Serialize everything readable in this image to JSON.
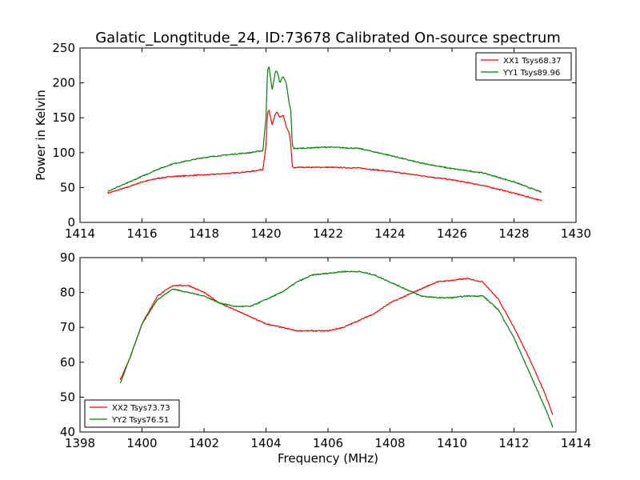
{
  "figure": {
    "title": "Galatic_Longtitude_24, ID:73678 Calibrated On-source spectrum"
  },
  "chart_data": [
    {
      "type": "line",
      "title": "Galatic_Longtitude_24, ID:73678 Calibrated On-source spectrum",
      "xlabel": "",
      "ylabel": "Power in Kelvin",
      "xlim": [
        1414,
        1430
      ],
      "ylim": [
        0,
        250
      ],
      "x_ticks": [
        1414,
        1416,
        1418,
        1420,
        1422,
        1424,
        1426,
        1428,
        1430
      ],
      "y_ticks": [
        0,
        50,
        100,
        150,
        200,
        250
      ],
      "grid": false,
      "legend_position": "top-right",
      "series": [
        {
          "name": "XX1 Tsys68.37",
          "color": "#ff0000",
          "x": [
            1414.9,
            1415.5,
            1416.0,
            1416.5,
            1417.0,
            1418.0,
            1419.0,
            1419.5,
            1419.9,
            1420.0,
            1420.05,
            1420.1,
            1420.2,
            1420.3,
            1420.35,
            1420.45,
            1420.55,
            1420.65,
            1420.75,
            1420.8,
            1420.85,
            1420.9,
            1421.0,
            1422.0,
            1423.0,
            1424.0,
            1425.0,
            1426.0,
            1427.0,
            1428.0,
            1428.9
          ],
          "y": [
            42,
            50,
            58,
            63,
            66,
            68,
            71,
            73,
            76,
            110,
            158,
            160,
            140,
            155,
            158,
            150,
            154,
            138,
            128,
            112,
            80,
            78,
            79,
            79,
            78,
            73,
            67,
            61,
            53,
            42,
            31
          ]
        },
        {
          "name": "YY1 Tsys89.96",
          "color": "#008000",
          "x": [
            1414.9,
            1415.5,
            1416.0,
            1416.5,
            1417.0,
            1418.0,
            1419.0,
            1419.5,
            1419.9,
            1420.0,
            1420.05,
            1420.1,
            1420.2,
            1420.3,
            1420.35,
            1420.45,
            1420.55,
            1420.65,
            1420.75,
            1420.8,
            1420.85,
            1420.9,
            1421.0,
            1422.0,
            1423.0,
            1424.0,
            1425.0,
            1426.0,
            1427.0,
            1428.0,
            1428.9
          ],
          "y": [
            45,
            56,
            66,
            76,
            84,
            93,
            98,
            100,
            103,
            150,
            220,
            222,
            190,
            215,
            218,
            200,
            210,
            200,
            170,
            160,
            110,
            106,
            106,
            108,
            106,
            96,
            85,
            77,
            71,
            58,
            43
          ]
        }
      ]
    },
    {
      "type": "line",
      "title": "",
      "xlabel": "Frequency (MHz)",
      "ylabel": "",
      "xlim": [
        1398,
        1414
      ],
      "ylim": [
        40,
        90
      ],
      "x_ticks": [
        1398,
        1400,
        1402,
        1404,
        1406,
        1408,
        1410,
        1412,
        1414
      ],
      "y_ticks": [
        40,
        50,
        60,
        70,
        80,
        90
      ],
      "grid": false,
      "legend_position": "bottom-left",
      "series": [
        {
          "name": "XX2 Tsys73.73",
          "color": "#ff0000",
          "x": [
            1399.3,
            1399.6,
            1400.0,
            1400.5,
            1401.0,
            1401.5,
            1402.0,
            1402.5,
            1403.0,
            1403.5,
            1404.0,
            1404.5,
            1405.0,
            1405.5,
            1406.0,
            1406.5,
            1407.0,
            1407.5,
            1408.0,
            1408.5,
            1409.0,
            1409.5,
            1410.0,
            1410.5,
            1411.0,
            1411.5,
            1412.0,
            1412.5,
            1413.0,
            1413.25
          ],
          "y": [
            55,
            61,
            71,
            79,
            82,
            82,
            80,
            77,
            75,
            73,
            71,
            70,
            69,
            69,
            69,
            70,
            72,
            74,
            77,
            79,
            81,
            83,
            83.5,
            84,
            83,
            78,
            70,
            61,
            51,
            45
          ]
        },
        {
          "name": "YY2 Tsys76.51",
          "color": "#008000",
          "x": [
            1399.3,
            1399.6,
            1400.0,
            1400.5,
            1401.0,
            1401.5,
            1402.0,
            1402.5,
            1403.0,
            1403.5,
            1404.0,
            1404.5,
            1405.0,
            1405.5,
            1406.0,
            1406.5,
            1407.0,
            1407.5,
            1408.0,
            1408.5,
            1409.0,
            1409.5,
            1410.0,
            1410.5,
            1411.0,
            1411.5,
            1412.0,
            1412.5,
            1413.0,
            1413.25
          ],
          "y": [
            54,
            61,
            71,
            78,
            81,
            80,
            79,
            77,
            76,
            76,
            78,
            80,
            83,
            85,
            85.5,
            86,
            86,
            85,
            83,
            81,
            79,
            78.5,
            78.5,
            79,
            79,
            75,
            67,
            57,
            47,
            41.5
          ]
        }
      ]
    }
  ]
}
